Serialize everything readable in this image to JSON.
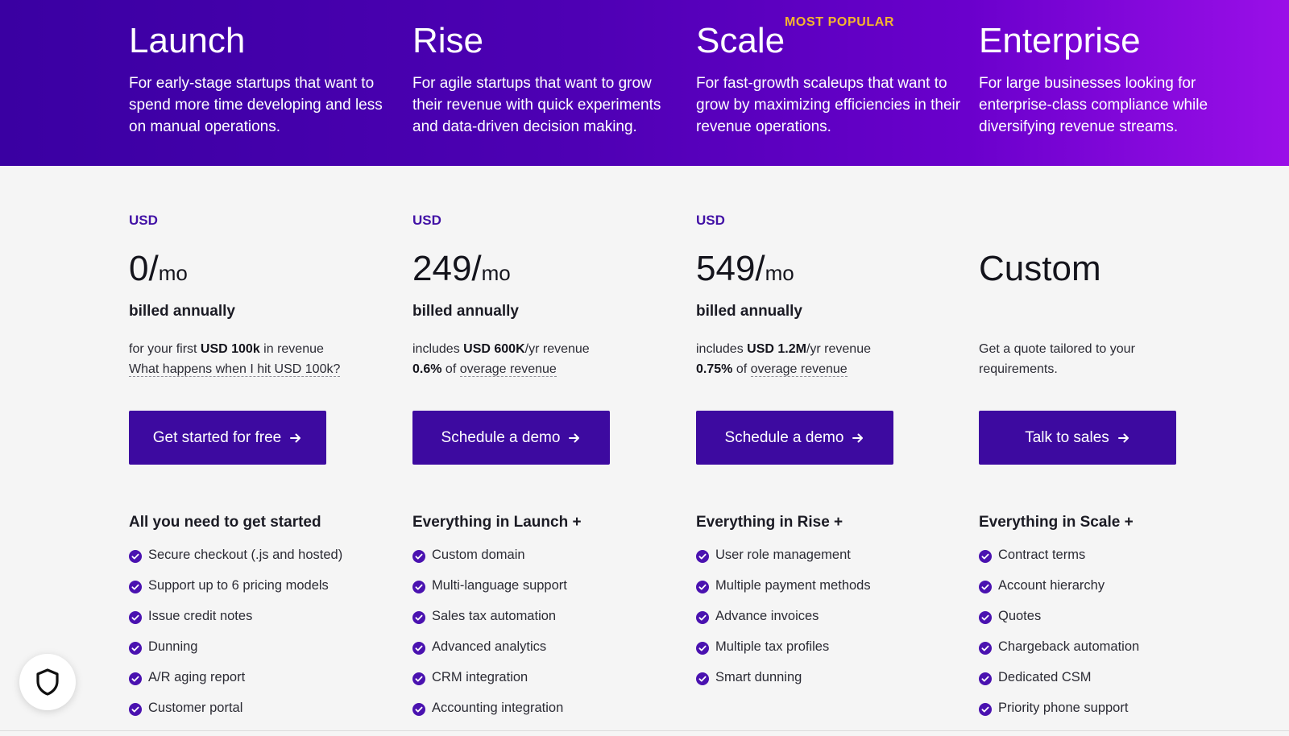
{
  "plans": [
    {
      "name": "Launch",
      "description": "For early-stage startups that want to spend more time developing and less on manual operations.",
      "currency": "USD",
      "amount": "0/",
      "per": "mo",
      "billing": "billed annually",
      "note_line1": {
        "pre": "for your first ",
        "bold": "USD 100k",
        "post": " in revenue"
      },
      "note_line2_link": "What happens when I hit USD 100k?",
      "cta": "Get started for free",
      "features_title": "All you need to get started",
      "features": [
        "Secure checkout (.js and hosted)",
        "Support up to 6 pricing models",
        "Issue credit notes",
        "Dunning",
        "A/R aging report",
        "Customer portal"
      ]
    },
    {
      "name": "Rise",
      "description": "For agile startups that want to grow their revenue with quick experiments and data-driven decision making.",
      "currency": "USD",
      "amount": "249/",
      "per": "mo",
      "billing": "billed annually",
      "note_line1": {
        "pre": "includes ",
        "bold": "USD 600K",
        "post": "/yr revenue"
      },
      "note_line2": {
        "bold": "0.6%",
        "pre": " of ",
        "link": "overage revenue"
      },
      "cta": "Schedule a demo",
      "features_title": "Everything in Launch +",
      "features": [
        "Custom domain",
        "Multi-language support",
        "Sales tax automation",
        "Advanced analytics",
        "CRM integration",
        "Accounting integration"
      ]
    },
    {
      "name": "Scale",
      "badge": "MOST POPULAR",
      "description": "For fast-growth scaleups that want to grow by maximizing efficiencies in their revenue operations.",
      "currency": "USD",
      "amount": "549/",
      "per": "mo",
      "billing": "billed annually",
      "note_line1": {
        "pre": "includes ",
        "bold": "USD 1.2M",
        "post": "/yr revenue"
      },
      "note_line2": {
        "bold": "0.75%",
        "pre": " of ",
        "link": "overage revenue"
      },
      "cta": "Schedule a demo",
      "features_title": "Everything in Rise +",
      "features": [
        "User role management",
        "Multiple payment methods",
        "Advance invoices",
        "Multiple tax profiles",
        "Smart dunning"
      ]
    },
    {
      "name": "Enterprise",
      "description": "For large businesses looking for enterprise-class compliance while diversifying revenue streams.",
      "amount": "Custom",
      "note": "Get a quote tailored to your requirements.",
      "cta": "Talk to sales",
      "features_title": "Everything in Scale +",
      "features": [
        "Contract terms",
        "Account hierarchy",
        "Quotes",
        "Chargeback automation",
        "Dedicated CSM",
        "Priority phone support"
      ]
    }
  ],
  "privacy_button": {
    "icon": "shield-icon"
  },
  "colors": {
    "brand": "#3d0aa0",
    "accent": "#f5b52d",
    "check": "#4a12b0"
  }
}
